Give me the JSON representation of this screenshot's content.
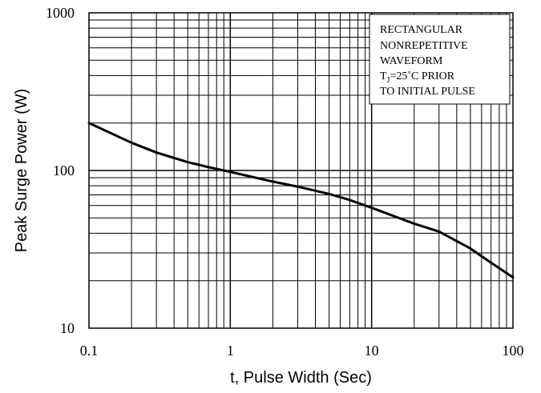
{
  "chart_data": {
    "type": "line",
    "title": "",
    "xlabel": "t, Pulse Width (Sec)",
    "ylabel": "Peak Surge Power (W)",
    "x_scale": "log",
    "y_scale": "log",
    "xlim": [
      0.1,
      100
    ],
    "ylim": [
      10,
      1000
    ],
    "grid": true,
    "x_ticks": [
      0.1,
      1,
      10,
      100
    ],
    "x_tick_labels": [
      "0.1",
      "1",
      "10",
      "100"
    ],
    "y_ticks": [
      10,
      100,
      1000
    ],
    "y_tick_labels": [
      "10",
      "100",
      "1000"
    ],
    "series": [
      {
        "name": "",
        "x": [
          0.1,
          0.2,
          0.3,
          0.5,
          0.7,
          1,
          2,
          3,
          5,
          7,
          10,
          20,
          30,
          50,
          70,
          100
        ],
        "y": [
          200,
          150,
          130,
          113,
          105,
          98,
          85,
          79,
          71,
          65,
          58,
          46,
          41,
          32,
          26,
          21
        ]
      }
    ],
    "annotation": {
      "lines": [
        "RECTANGULAR",
        "NONREPETITIVE",
        "WAVEFORM",
        "T",
        "TO INITIAL PULSE"
      ],
      "tj_line": {
        "main": "T",
        "subscript": "J",
        "rest": "=25˚C PRIOR"
      }
    },
    "colors": {
      "line": "#000000",
      "grid": "#000000",
      "background": "#ffffff"
    }
  }
}
